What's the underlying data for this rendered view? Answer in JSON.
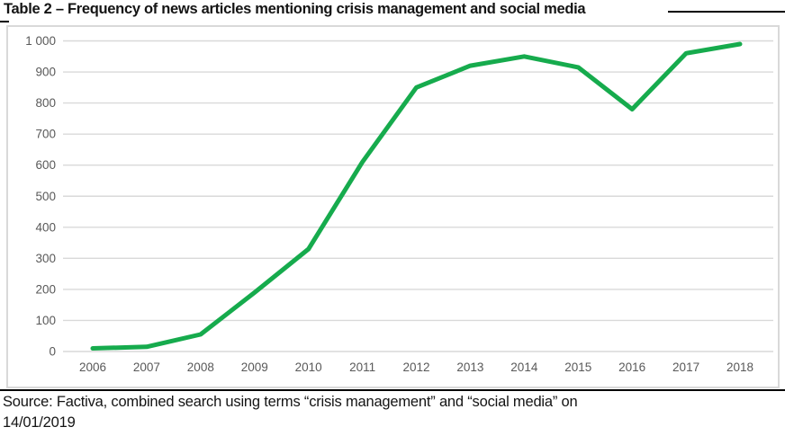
{
  "title": "Table 2 – Frequency of news articles mentioning crisis management and social media",
  "source_note": {
    "line1": "Source:  Factiva, combined search using terms “crisis management” and “social media” on",
    "line2": "14/01/2019"
  },
  "colors": {
    "line": "#16ab4d",
    "gridline": "#d9d9d9",
    "axis_label": "#595959",
    "frame_border": "#d9d9d9",
    "separator": "#000000",
    "text": "#141414"
  },
  "chart_data": {
    "type": "line",
    "x": [
      "2006",
      "2007",
      "2008",
      "2009",
      "2010",
      "2011",
      "2012",
      "2013",
      "2014",
      "2015",
      "2016",
      "2017",
      "2018"
    ],
    "values": [
      10,
      15,
      55,
      190,
      330,
      610,
      850,
      920,
      950,
      915,
      780,
      960,
      990
    ],
    "title": "",
    "xlabel": "",
    "ylabel": "",
    "ylim": [
      0,
      1000
    ],
    "ytick_step": 100,
    "ytick_labels": [
      "0",
      "100",
      "200",
      "300",
      "400",
      "500",
      "600",
      "700",
      "800",
      "900",
      "1 000"
    ],
    "grid": true,
    "legend": false,
    "line_width": 5
  }
}
